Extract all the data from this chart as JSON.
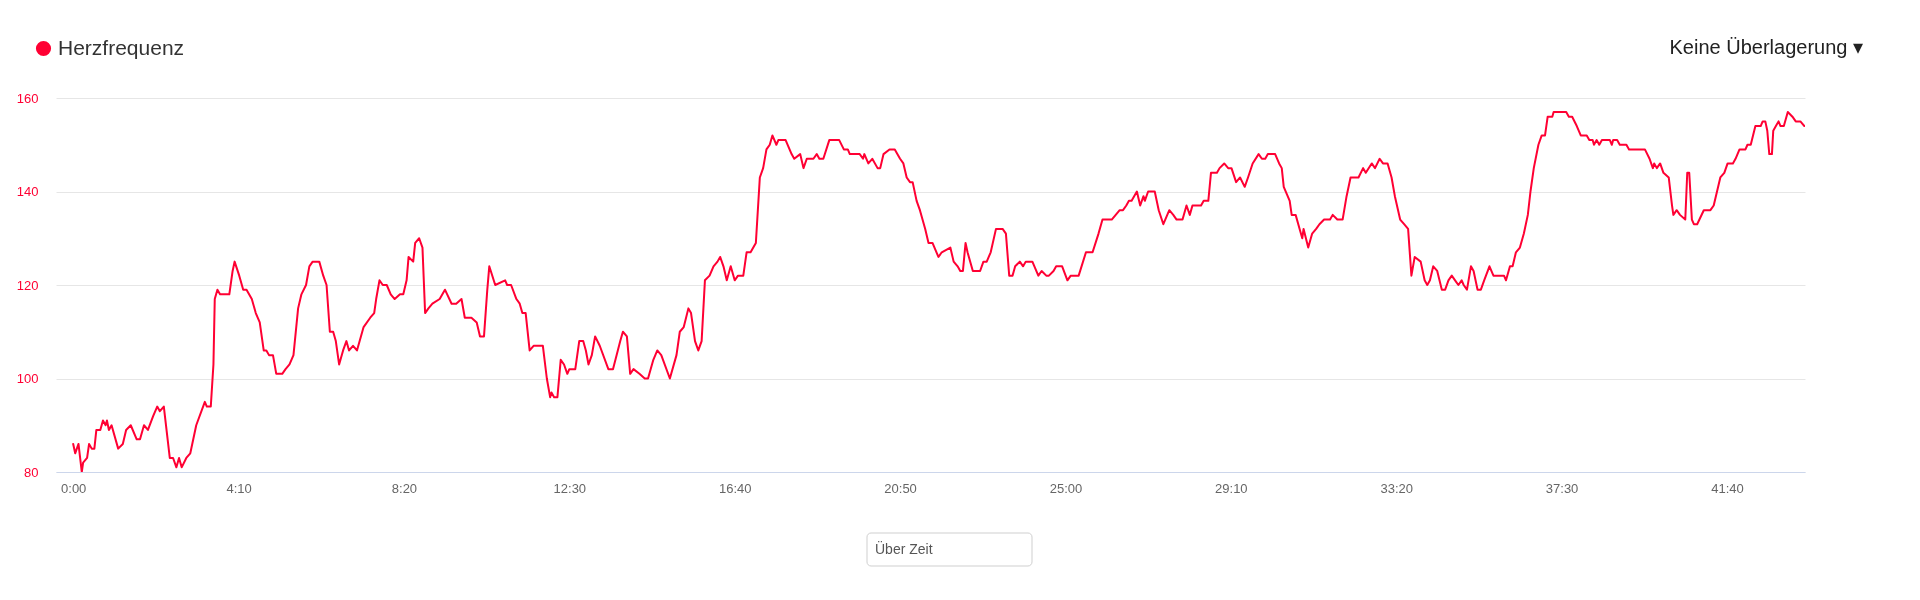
{
  "chart_data": {
    "type": "line",
    "x": [
      0,
      3,
      8,
      13,
      15,
      21,
      24,
      28,
      32,
      35,
      41,
      45,
      49,
      51,
      54,
      58,
      68,
      75,
      80,
      87,
      96,
      101,
      107,
      113,
      121,
      127,
      131,
      137,
      146,
      151,
      156,
      160,
      164,
      171,
      177,
      186,
      199,
      202,
      208,
      212,
      214,
      218,
      222,
      236,
      241,
      244,
      251,
      257,
      262,
      270,
      276,
      282,
      288,
      292,
      296,
      302,
      307,
      316,
      321,
      327,
      333,
      340,
      345,
      352,
      357,
      362,
      372,
      378,
      383,
      388,
      393,
      397,
      402,
      408,
      413,
      417,
      423,
      429,
      439,
      449,
      455,
      458,
      463,
      468,
      474,
      480,
      486,
      494,
      499,
      504,
      507,
      514,
      517,
      523,
      528,
      532,
      537,
      543,
      554,
      562,
      572,
      579,
      587,
      592,
      602,
      610,
      615,
      621,
      626,
      629,
      638,
      653,
      656,
      662,
      670,
      675,
      679,
      684,
      690,
      696,
      710,
      716,
      721,
      723,
      727,
      732,
      737,
      742,
      747,
      750,
      759,
      765,
      771,
      775,
      779,
      784,
      789,
      796,
      809,
      816,
      827,
      831,
      837,
      842,
      847,
      856,
      864,
      869,
      877,
      883,
      889,
      902,
      912,
      917,
      923,
      930,
      934,
      940,
      945,
      950,
      955,
      962,
      968,
      974,
      978,
      983,
      988,
      994,
      1000,
      1005,
      1013,
      1018,
      1024,
      1032,
      1038,
      1043,
      1048,
      1053,
      1057,
      1063,
      1066,
      1077,
      1086,
      1090,
      1099,
      1104,
      1109,
      1119,
      1124,
      1128,
      1134,
      1143,
      1158,
      1165,
      1171,
      1174,
      1189,
      1194,
      1196,
      1202,
      1208,
      1216,
      1220,
      1225,
      1234,
      1242,
      1250,
      1255,
      1260,
      1265,
      1269,
      1275,
      1280,
      1288,
      1293,
      1299,
      1308,
      1313,
      1326,
      1331,
      1337,
      1341,
      1345,
      1349,
      1352,
      1360,
      1371,
      1376,
      1381,
      1387,
      1395,
      1405,
      1410,
      1415,
      1420,
      1424,
      1431,
      1436,
      1440,
      1450,
      1459,
      1464,
      1471,
      1475,
      1482,
      1486,
      1495,
      1503,
      1508,
      1520,
      1531,
      1541,
      1550,
      1556,
      1570,
      1576,
      1582,
      1587,
      1592,
      1596,
      1600,
      1608,
      1613,
      1618,
      1620,
      1625,
      1635,
      1641,
      1648,
      1657,
      1663,
      1668,
      1677,
      1683,
      1688,
      1692,
      1705,
      1709,
      1716,
      1720,
      1729,
      1733,
      1740,
      1746,
      1751,
      1758,
      1764,
      1771,
      1776,
      1783,
      1792,
      1797,
      1802,
      1806,
      1817,
      1823,
      1827,
      1830,
      1839,
      1842,
      1848,
      1854,
      1858,
      1860,
      1867,
      1873,
      1879,
      1884,
      1891,
      1900,
      1904,
      1911,
      1919,
      1925,
      1931,
      1943,
      1950,
      1954,
      1963,
      1968,
      1975,
      1980,
      1987,
      1993,
      1998,
      2006,
      2012,
      2018,
      2023,
      2028,
      2037,
      2043,
      2047,
      2051,
      2056,
      2062,
      2069,
      2074,
      2079,
      2084,
      2089,
      2094,
      2099,
      2102,
      2107,
      2113,
      2117,
      2123,
      2128,
      2133,
      2141,
      2147,
      2163,
      2166,
      2172,
      2176,
      2181,
      2187,
      2193,
      2199,
      2203,
      2208,
      2215,
      2220,
      2225,
      2229,
      2236,
      2238,
      2257,
      2261,
      2266,
      2273,
      2279,
      2288,
      2292,
      2297,
      2299,
      2303,
      2307,
      2311,
      2323,
      2326,
      2328,
      2334,
      2338,
      2348,
      2352,
      2376,
      2383,
      2388,
      2390,
      2394,
      2399,
      2404,
      2412,
      2417,
      2419,
      2424,
      2429,
      2437,
      2440,
      2443,
      2447,
      2450,
      2455,
      2465,
      2475,
      2480,
      2490,
      2496,
      2501,
      2509,
      2513,
      2519,
      2528,
      2531,
      2536,
      2543,
      2551,
      2554,
      2558,
      2561,
      2564,
      2568,
      2570,
      2574,
      2578,
      2581,
      2586,
      2592,
      2599,
      2604,
      2611,
      2617
    ],
    "series": [
      {
        "name": "Herzfrequenz",
        "color": "#ff0033",
        "values": [
          86,
          84,
          86,
          80,
          82,
          83,
          86,
          85,
          85,
          89,
          89,
          91,
          90,
          91,
          89,
          90,
          85,
          86,
          89,
          90,
          87,
          87,
          90,
          89,
          92,
          94,
          93,
          94,
          83,
          83,
          81,
          83,
          81,
          83,
          84,
          90,
          95,
          94,
          94,
          103,
          117,
          119,
          118,
          118,
          123,
          125,
          122,
          119,
          119,
          117,
          114,
          112,
          106,
          106,
          105,
          105,
          101,
          101,
          102,
          103,
          105,
          115,
          118,
          120,
          124,
          125,
          125,
          122,
          120,
          110,
          110,
          108,
          103,
          106,
          108,
          106,
          107,
          106,
          111,
          113,
          114,
          117,
          121,
          120,
          120,
          118,
          117,
          118,
          118,
          121,
          126,
          125,
          129,
          130,
          128,
          114,
          115,
          116,
          117,
          119,
          116,
          116,
          117,
          113,
          113,
          112,
          109,
          109,
          119,
          124,
          120,
          121,
          120,
          120,
          117,
          116,
          114,
          114,
          106,
          107,
          107,
          100,
          96,
          97,
          96,
          96,
          104,
          103,
          101,
          102,
          102,
          108,
          108,
          106,
          103,
          105,
          109,
          107,
          102,
          102,
          108,
          110,
          109,
          101,
          102,
          101,
          100,
          100,
          104,
          106,
          105,
          100,
          105,
          110,
          111,
          115,
          114,
          108,
          106,
          108,
          121,
          122,
          124,
          125,
          126,
          124,
          121,
          124,
          121,
          122,
          122,
          127,
          127,
          129,
          143,
          145,
          149,
          150,
          152,
          150,
          151,
          151,
          148,
          147,
          148,
          145,
          147,
          147,
          148,
          147,
          147,
          151,
          151,
          149,
          149,
          148,
          148,
          147,
          148,
          146,
          147,
          145,
          145,
          148,
          149,
          149,
          147,
          146,
          143,
          142,
          142,
          138,
          136,
          132,
          129,
          129,
          126,
          127,
          128,
          125,
          124,
          123,
          123,
          129,
          127,
          123,
          123,
          125,
          125,
          127,
          132,
          132,
          131,
          122,
          122,
          124,
          125,
          124,
          125,
          125,
          122,
          123,
          122,
          122,
          123,
          124,
          124,
          121,
          122,
          122,
          127,
          127,
          131,
          134,
          134,
          135,
          136,
          136,
          137,
          138,
          138,
          140,
          137,
          139,
          138,
          140,
          140,
          136,
          133,
          136,
          135,
          134,
          134,
          137,
          135,
          137,
          137,
          138,
          138,
          144,
          144,
          145,
          146,
          145,
          145,
          142,
          143,
          141,
          143,
          146,
          148,
          147,
          147,
          148,
          148,
          146,
          145,
          141,
          138,
          135,
          135,
          132,
          130,
          132,
          128,
          131,
          132,
          133,
          134,
          134,
          135,
          134,
          134,
          139,
          143,
          143,
          145,
          144,
          146,
          145,
          147,
          146,
          146,
          143,
          139,
          134,
          133,
          132,
          122,
          126,
          125,
          121,
          120,
          121,
          124,
          123,
          119,
          119,
          121,
          122,
          121,
          120,
          121,
          120,
          119,
          124,
          123,
          119,
          119,
          121,
          124,
          122,
          122,
          121,
          124,
          124,
          127,
          128,
          131,
          135,
          140,
          145,
          150,
          152,
          152,
          156,
          156,
          157,
          157,
          156,
          156,
          154,
          152,
          152,
          151,
          151,
          150,
          151,
          150,
          151,
          151,
          150,
          151,
          151,
          150,
          150,
          149,
          149,
          147,
          145,
          146,
          145,
          146,
          144,
          143,
          137,
          135,
          136,
          135,
          134,
          144,
          144,
          134,
          133,
          133,
          136,
          136,
          137,
          143,
          144,
          146,
          146,
          147,
          149,
          149,
          150,
          150,
          154,
          154,
          155,
          155,
          153,
          148,
          148,
          153,
          154,
          155,
          154,
          154,
          157,
          156,
          155,
          155,
          154
        ]
      }
    ],
    "xlim": [
      -26,
      2618
    ],
    "ylim": [
      80,
      160
    ],
    "xticks": [
      {
        "value": 0,
        "label": "0:00"
      },
      {
        "value": 250,
        "label": "4:10"
      },
      {
        "value": 500,
        "label": "8:20"
      },
      {
        "value": 750,
        "label": "12:30"
      },
      {
        "value": 1000,
        "label": "16:40"
      },
      {
        "value": 1250,
        "label": "20:50"
      },
      {
        "value": 1500,
        "label": "25:00"
      },
      {
        "value": 1750,
        "label": "29:10"
      },
      {
        "value": 2000,
        "label": "33:20"
      },
      {
        "value": 2250,
        "label": "37:30"
      },
      {
        "value": 2500,
        "label": "41:40"
      }
    ],
    "yticks": [
      80,
      100,
      120,
      140,
      160
    ],
    "grid": "y",
    "legend": "top left",
    "line_style": "solid",
    "annotations": [
      "Keine Überlagerung ▾",
      "Über Zeit"
    ]
  }
}
